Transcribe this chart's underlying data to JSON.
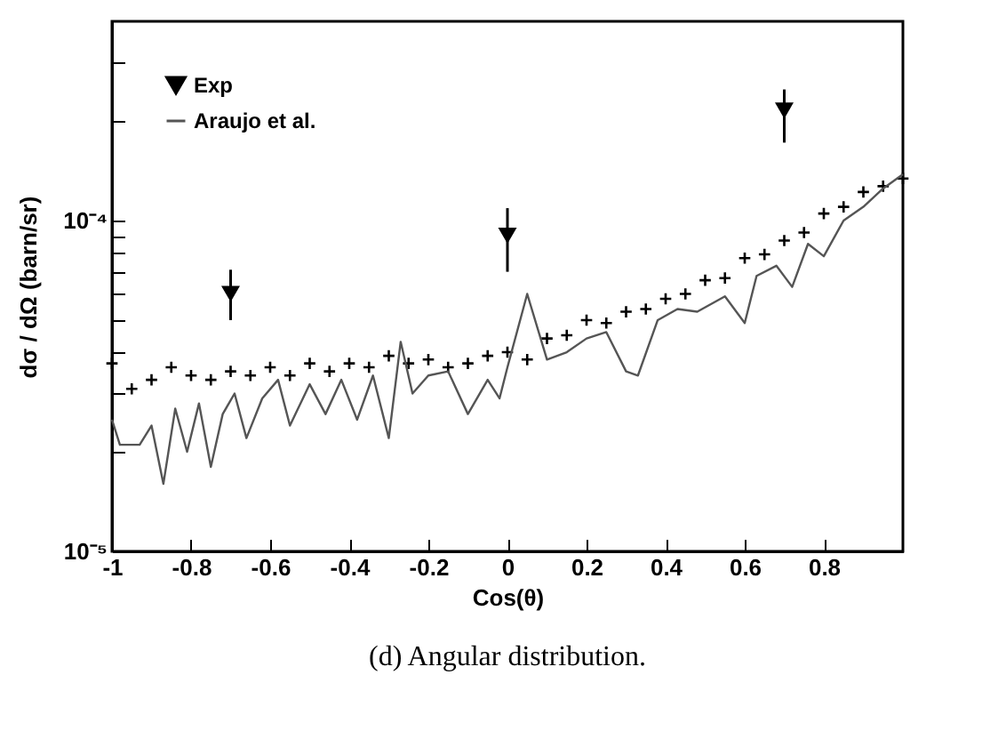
{
  "chart_data": {
    "type": "scatter",
    "xlabel": "Cos(θ)",
    "ylabel": "dσ / dΩ (barn/sr)",
    "annotations": [
      "(d) Angular distribution."
    ],
    "log": "y",
    "grid": false,
    "legend": "top left",
    "xlim": [
      -1,
      1
    ],
    "ylim": [
      1e-05,
      0.0004
    ],
    "xticks": [
      -1,
      -0.8,
      -0.6,
      -0.4,
      -0.2,
      0,
      0.2,
      0.4,
      0.6,
      0.8
    ],
    "yticks": [
      {
        "value": 1e-05,
        "label": "10⁻⁵"
      },
      {
        "value": 2e-05,
        "label": null
      },
      {
        "value": 3e-05,
        "label": null
      },
      {
        "value": 4e-05,
        "label": null
      },
      {
        "value": 5e-05,
        "label": null
      },
      {
        "value": 6e-05,
        "label": null
      },
      {
        "value": 7e-05,
        "label": null
      },
      {
        "value": 8e-05,
        "label": null
      },
      {
        "value": 9e-05,
        "label": null
      },
      {
        "value": 0.0001,
        "label": "10⁻⁴"
      },
      {
        "value": 0.0002,
        "label": null
      },
      {
        "value": 0.0003,
        "label": null
      }
    ],
    "series": [
      {
        "color": "#000000",
        "marker": "cross",
        "x": [
          -1,
          -0.95,
          -0.9,
          -0.85,
          -0.8,
          -0.75,
          -0.7,
          -0.65,
          -0.6,
          -0.55,
          -0.5,
          -0.45,
          -0.4,
          -0.35,
          -0.3,
          -0.25,
          -0.2,
          -0.15,
          -0.1,
          -0.05,
          0,
          0.05,
          0.1,
          0.15,
          0.2,
          0.25,
          0.3,
          0.35,
          0.4,
          0.45,
          0.5,
          0.55,
          0.6,
          0.65,
          0.7,
          0.75,
          0.8,
          0.85,
          0.9,
          0.95,
          1
        ],
        "values": [
          3.7e-05,
          3.1e-05,
          3.3e-05,
          3.6e-05,
          3.4e-05,
          3.3e-05,
          3.5e-05,
          3.4e-05,
          3.6e-05,
          3.4e-05,
          3.7e-05,
          3.5e-05,
          3.7e-05,
          3.6e-05,
          3.9e-05,
          3.7e-05,
          3.8e-05,
          3.6e-05,
          3.7e-05,
          3.9e-05,
          4e-05,
          3.8e-05,
          4.4e-05,
          4.5e-05,
          5e-05,
          4.9e-05,
          5.3e-05,
          5.4e-05,
          5.8e-05,
          6e-05,
          6.6e-05,
          6.7e-05,
          7.7e-05,
          7.9e-05,
          8.7e-05,
          9.2e-05,
          0.000105,
          0.00011,
          0.000122,
          0.000127,
          0.000134
        ]
      },
      {
        "type": "scatter",
        "name": "Exp",
        "color": "#000000",
        "marker": "triangle",
        "x": [
          -0.7,
          0,
          0.7
        ],
        "values": [
          6e-05,
          9e-05,
          0.000215
        ],
        "errors": [
          [
            5e-05,
            7.1e-05
          ],
          [
            7e-05,
            0.000109
          ],
          [
            0.000172,
            0.000249
          ]
        ]
      },
      {
        "type": "line",
        "name": "Araujo et al.",
        "color": "#555555",
        "marker": "none",
        "x": [
          -1,
          -0.98,
          -0.93,
          -0.9,
          -0.87,
          -0.84,
          -0.81,
          -0.78,
          -0.75,
          -0.72,
          -0.69,
          -0.66,
          -0.62,
          -0.58,
          -0.55,
          -0.5,
          -0.46,
          -0.42,
          -0.38,
          -0.34,
          -0.3,
          -0.27,
          -0.24,
          -0.2,
          -0.15,
          -0.1,
          -0.05,
          -0.02,
          0,
          0.05,
          0.1,
          0.15,
          0.2,
          0.25,
          0.3,
          0.33,
          0.38,
          0.43,
          0.48,
          0.55,
          0.6,
          0.63,
          0.68,
          0.72,
          0.76,
          0.8,
          0.85,
          0.9,
          0.95,
          1
        ],
        "values": [
          2.5e-05,
          2.1e-05,
          2.1e-05,
          2.4e-05,
          1.6e-05,
          2.7e-05,
          2e-05,
          2.8e-05,
          1.8e-05,
          2.6e-05,
          3e-05,
          2.2e-05,
          2.9e-05,
          3.3e-05,
          2.4e-05,
          3.2e-05,
          2.6e-05,
          3.3e-05,
          2.5e-05,
          3.4e-05,
          2.2e-05,
          4.3e-05,
          3e-05,
          3.4e-05,
          3.5e-05,
          2.6e-05,
          3.3e-05,
          2.9e-05,
          3.6e-05,
          6e-05,
          3.8e-05,
          4e-05,
          4.4e-05,
          4.6e-05,
          3.5e-05,
          3.4e-05,
          5e-05,
          5.4e-05,
          5.3e-05,
          5.9e-05,
          4.9e-05,
          6.8e-05,
          7.3e-05,
          6.3e-05,
          8.5e-05,
          7.8e-05,
          0.0001,
          0.00011,
          0.000125,
          0.000138
        ]
      }
    ]
  }
}
